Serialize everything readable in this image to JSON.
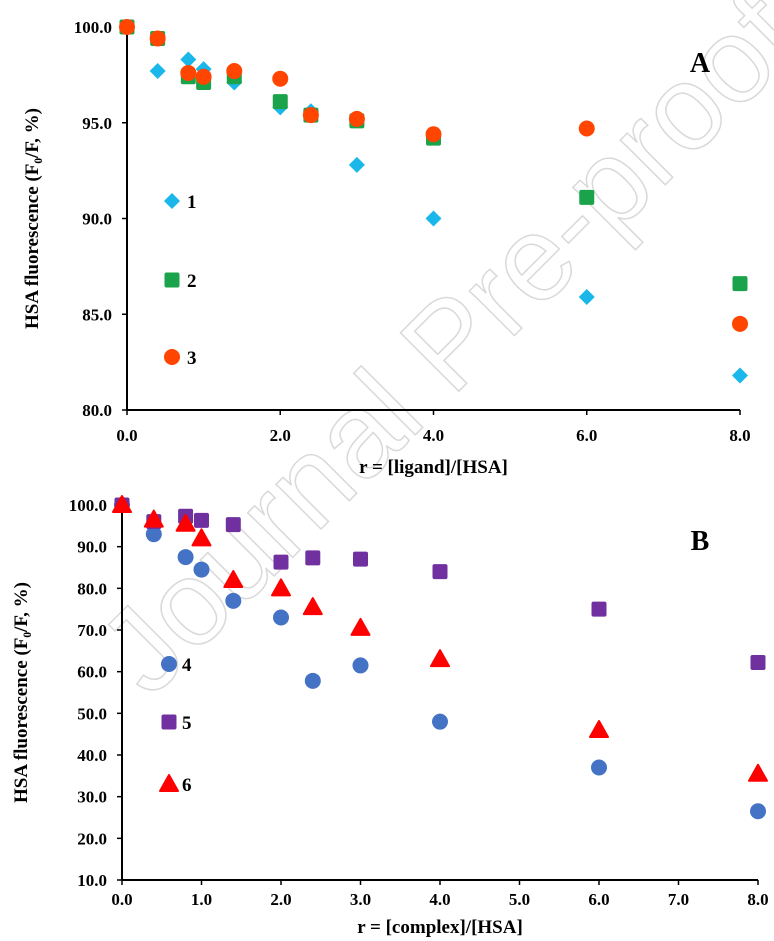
{
  "watermark": "Journal Pre-proof",
  "colors": {
    "s1": "#1ab7ea",
    "s2": "#1aa34a",
    "s3": "#ff4500",
    "s4": "#4472c4",
    "s5": "#7030a0",
    "s6": "#ff0000"
  },
  "chart_data": [
    {
      "panel": "A",
      "type": "scatter",
      "xlabel": "r = [ligand]/[HSA]",
      "ylabel": "HSA fluorescence (F₀/F, %)",
      "xlim": [
        0,
        8
      ],
      "ylim": [
        80,
        100
      ],
      "xticks": [
        "0.0",
        "2.0",
        "4.0",
        "6.0",
        "8.0"
      ],
      "yticks": [
        "80.0",
        "85.0",
        "90.0",
        "95.0",
        "100.0"
      ],
      "legend_position": "left",
      "series": [
        {
          "name": "1",
          "marker": "diamond",
          "color": "#1ab7ea",
          "points": [
            [
              0,
              100.0
            ],
            [
              0.4,
              97.7
            ],
            [
              0.8,
              98.3
            ],
            [
              1.0,
              97.8
            ],
            [
              1.4,
              97.1
            ],
            [
              2.0,
              95.8
            ],
            [
              2.4,
              95.6
            ],
            [
              3.0,
              92.8
            ],
            [
              4.0,
              90.0
            ],
            [
              6.0,
              85.9
            ],
            [
              8.0,
              81.8
            ]
          ]
        },
        {
          "name": "2",
          "marker": "square",
          "color": "#1aa34a",
          "points": [
            [
              0,
              100.0
            ],
            [
              0.4,
              99.4
            ],
            [
              0.8,
              97.4
            ],
            [
              1.0,
              97.1
            ],
            [
              1.4,
              97.4
            ],
            [
              2.0,
              96.1
            ],
            [
              2.4,
              95.4
            ],
            [
              3.0,
              95.1
            ],
            [
              4.0,
              94.2
            ],
            [
              6.0,
              91.1
            ],
            [
              8.0,
              86.6
            ]
          ]
        },
        {
          "name": "3",
          "marker": "circle",
          "color": "#ff4500",
          "points": [
            [
              0,
              100.0
            ],
            [
              0.4,
              99.4
            ],
            [
              0.8,
              97.6
            ],
            [
              1.0,
              97.4
            ],
            [
              1.4,
              97.7
            ],
            [
              2.0,
              97.3
            ],
            [
              2.4,
              95.4
            ],
            [
              3.0,
              95.2
            ],
            [
              4.0,
              94.4
            ],
            [
              6.0,
              94.7
            ],
            [
              8.0,
              84.5
            ]
          ]
        }
      ]
    },
    {
      "panel": "B",
      "type": "scatter",
      "xlabel": "r = [complex]/[HSA]",
      "ylabel": "HSA fluorescence (F₀/F, %)",
      "xlim": [
        0,
        8
      ],
      "ylim": [
        10,
        100
      ],
      "xticks": [
        "0.0",
        "1.0",
        "2.0",
        "3.0",
        "4.0",
        "5.0",
        "6.0",
        "7.0",
        "8.0"
      ],
      "yticks": [
        "10.0",
        "20.0",
        "30.0",
        "40.0",
        "50.0",
        "60.0",
        "70.0",
        "80.0",
        "90.0",
        "100.0"
      ],
      "legend_position": "left",
      "series": [
        {
          "name": "4",
          "marker": "circle",
          "color": "#4472c4",
          "points": [
            [
              0,
              100.0
            ],
            [
              0.4,
              93.0
            ],
            [
              0.8,
              87.5
            ],
            [
              1.0,
              84.5
            ],
            [
              1.4,
              77.0
            ],
            [
              2.0,
              73.0
            ],
            [
              2.4,
              57.8
            ],
            [
              3.0,
              61.5
            ],
            [
              4.0,
              48.0
            ],
            [
              6.0,
              37.0
            ],
            [
              8.0,
              26.5
            ]
          ]
        },
        {
          "name": "5",
          "marker": "square",
          "color": "#7030a0",
          "points": [
            [
              0,
              100.0
            ],
            [
              0.4,
              96.0
            ],
            [
              0.8,
              97.3
            ],
            [
              1.0,
              96.3
            ],
            [
              1.4,
              95.3
            ],
            [
              2.0,
              86.3
            ],
            [
              2.4,
              87.3
            ],
            [
              3.0,
              87.0
            ],
            [
              4.0,
              84.0
            ],
            [
              6.0,
              75.0
            ],
            [
              8.0,
              62.2
            ]
          ]
        },
        {
          "name": "6",
          "marker": "triangle",
          "color": "#ff0000",
          "points": [
            [
              0,
              100.0
            ],
            [
              0.4,
              96.5
            ],
            [
              0.8,
              95.5
            ],
            [
              1.0,
              92.0
            ],
            [
              1.4,
              82.0
            ],
            [
              2.0,
              80.0
            ],
            [
              2.4,
              75.5
            ],
            [
              3.0,
              70.5
            ],
            [
              4.0,
              63.0
            ],
            [
              6.0,
              46.0
            ],
            [
              8.0,
              35.5
            ]
          ]
        }
      ]
    }
  ]
}
